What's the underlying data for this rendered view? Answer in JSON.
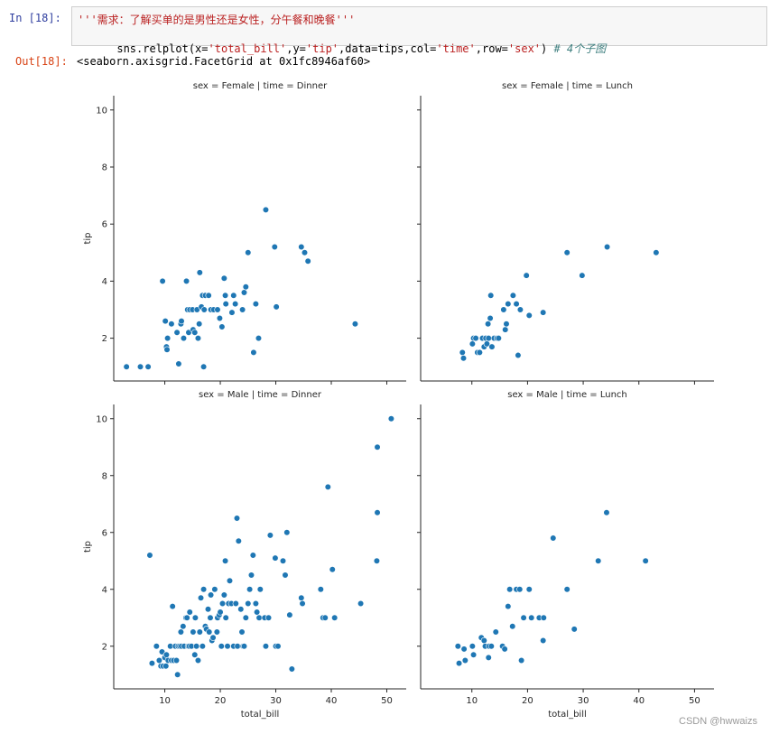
{
  "notebook": {
    "in_prompt": "In  [18]:",
    "out_prompt": "Out[18]:",
    "code_line1": "'''需求：了解买单的是男性还是女性，分午餐和晚餐'''",
    "code_line2_parts": [
      "sns.relplot(x=",
      "'total_bill'",
      ",y=",
      "'tip'",
      ",data=tips,col=",
      "'time'",
      ",row=",
      "'sex'",
      ") ",
      "# 4个子图"
    ],
    "output": "<seaborn.axisgrid.FacetGrid at 0x1fc8946af60>"
  },
  "watermark": "CSDN @hwwaizs",
  "chart_data": {
    "type": "scatter",
    "xlabel": "total_bill",
    "ylabel": "tip",
    "xlim": [
      0.8,
      53.5
    ],
    "ylim": [
      0.5,
      10.5
    ],
    "xticks": [
      10,
      20,
      30,
      40,
      50
    ],
    "yticks": [
      2,
      4,
      6,
      8,
      10
    ],
    "point_color": "#1f77b4",
    "facets": [
      {
        "title": "sex = Female | time = Dinner",
        "points": [
          [
            3.1,
            1.0
          ],
          [
            5.6,
            1.0
          ],
          [
            7.0,
            1.0
          ],
          [
            9.6,
            4.0
          ],
          [
            10.1,
            2.6
          ],
          [
            10.3,
            1.7
          ],
          [
            10.4,
            1.6
          ],
          [
            10.5,
            2.0
          ],
          [
            11.2,
            2.5
          ],
          [
            12.2,
            2.2
          ],
          [
            12.5,
            1.1
          ],
          [
            12.9,
            2.5
          ],
          [
            13.0,
            2.6
          ],
          [
            13.4,
            2.0
          ],
          [
            13.9,
            4.0
          ],
          [
            14.1,
            3.0
          ],
          [
            14.3,
            2.2
          ],
          [
            14.5,
            3.0
          ],
          [
            15.0,
            3.0
          ],
          [
            15.1,
            2.3
          ],
          [
            15.4,
            2.2
          ],
          [
            15.8,
            3.0
          ],
          [
            16.0,
            2.0
          ],
          [
            16.2,
            2.5
          ],
          [
            16.3,
            4.3
          ],
          [
            16.6,
            3.1
          ],
          [
            16.8,
            3.5
          ],
          [
            17.0,
            1.0
          ],
          [
            17.1,
            3.0
          ],
          [
            17.3,
            3.5
          ],
          [
            17.9,
            3.5
          ],
          [
            18.3,
            3.0
          ],
          [
            18.8,
            3.0
          ],
          [
            19.5,
            3.0
          ],
          [
            19.9,
            2.7
          ],
          [
            20.3,
            2.4
          ],
          [
            20.7,
            4.1
          ],
          [
            20.9,
            3.5
          ],
          [
            21.0,
            3.2
          ],
          [
            22.1,
            2.9
          ],
          [
            22.4,
            3.5
          ],
          [
            22.7,
            3.2
          ],
          [
            24.0,
            3.0
          ],
          [
            24.3,
            3.6
          ],
          [
            24.6,
            3.8
          ],
          [
            25.0,
            5.0
          ],
          [
            26.0,
            1.5
          ],
          [
            26.4,
            3.2
          ],
          [
            26.9,
            2.0
          ],
          [
            28.2,
            6.5
          ],
          [
            29.8,
            5.2
          ],
          [
            30.1,
            3.1
          ],
          [
            34.6,
            5.2
          ],
          [
            35.2,
            5.0
          ],
          [
            35.8,
            4.7
          ],
          [
            44.3,
            2.5
          ]
        ]
      },
      {
        "title": "sex = Female | time = Lunch",
        "points": [
          [
            8.3,
            1.5
          ],
          [
            8.5,
            1.3
          ],
          [
            10.1,
            1.8
          ],
          [
            10.3,
            2.0
          ],
          [
            10.7,
            2.0
          ],
          [
            11.0,
            1.5
          ],
          [
            11.4,
            1.5
          ],
          [
            11.9,
            2.0
          ],
          [
            12.2,
            1.7
          ],
          [
            12.5,
            2.0
          ],
          [
            12.7,
            1.8
          ],
          [
            12.9,
            2.5
          ],
          [
            13.0,
            2.0
          ],
          [
            13.3,
            2.7
          ],
          [
            13.4,
            3.5
          ],
          [
            13.6,
            1.7
          ],
          [
            14.0,
            2.0
          ],
          [
            14.5,
            2.0
          ],
          [
            14.8,
            2.0
          ],
          [
            15.7,
            3.0
          ],
          [
            16.0,
            2.3
          ],
          [
            16.2,
            2.5
          ],
          [
            16.5,
            3.2
          ],
          [
            17.4,
            3.5
          ],
          [
            18.0,
            3.2
          ],
          [
            18.3,
            1.4
          ],
          [
            18.7,
            3.0
          ],
          [
            19.8,
            4.2
          ],
          [
            20.3,
            2.8
          ],
          [
            22.8,
            2.9
          ],
          [
            27.1,
            5.0
          ],
          [
            29.8,
            4.2
          ],
          [
            34.3,
            5.2
          ],
          [
            43.1,
            5.0
          ]
        ]
      },
      {
        "title": "sex = Male | time = Dinner",
        "points": [
          [
            7.3,
            5.2
          ],
          [
            7.7,
            1.4
          ],
          [
            8.5,
            2.0
          ],
          [
            9.0,
            1.5
          ],
          [
            9.3,
            1.3
          ],
          [
            9.5,
            1.8
          ],
          [
            9.7,
            1.3
          ],
          [
            10.0,
            1.6
          ],
          [
            10.2,
            1.3
          ],
          [
            10.3,
            1.7
          ],
          [
            10.6,
            1.5
          ],
          [
            11.0,
            2.0
          ],
          [
            11.2,
            1.5
          ],
          [
            11.4,
            3.4
          ],
          [
            11.6,
            1.5
          ],
          [
            11.9,
            2.0
          ],
          [
            12.1,
            1.5
          ],
          [
            12.3,
            1.0
          ],
          [
            12.4,
            2.0
          ],
          [
            12.7,
            2.0
          ],
          [
            12.9,
            2.5
          ],
          [
            13.0,
            2.0
          ],
          [
            13.3,
            2.7
          ],
          [
            13.5,
            2.0
          ],
          [
            13.8,
            3.0
          ],
          [
            14.0,
            3.0
          ],
          [
            14.2,
            2.0
          ],
          [
            14.4,
            2.0
          ],
          [
            14.5,
            3.2
          ],
          [
            14.8,
            2.0
          ],
          [
            15.1,
            2.5
          ],
          [
            15.4,
            1.7
          ],
          [
            15.5,
            3.0
          ],
          [
            15.7,
            2.0
          ],
          [
            16.0,
            1.5
          ],
          [
            16.3,
            2.5
          ],
          [
            16.5,
            3.7
          ],
          [
            16.8,
            2.0
          ],
          [
            17.0,
            4.0
          ],
          [
            17.3,
            2.7
          ],
          [
            17.5,
            2.6
          ],
          [
            17.8,
            3.3
          ],
          [
            18.0,
            2.5
          ],
          [
            18.2,
            3.0
          ],
          [
            18.3,
            3.8
          ],
          [
            18.5,
            2.2
          ],
          [
            18.7,
            2.3
          ],
          [
            19.0,
            4.0
          ],
          [
            19.4,
            2.5
          ],
          [
            19.5,
            3.0
          ],
          [
            19.8,
            3.1
          ],
          [
            20.0,
            3.2
          ],
          [
            20.2,
            2.0
          ],
          [
            20.4,
            3.5
          ],
          [
            20.7,
            3.8
          ],
          [
            20.9,
            5.0
          ],
          [
            21.0,
            3.0
          ],
          [
            21.3,
            2.0
          ],
          [
            21.5,
            3.5
          ],
          [
            21.7,
            4.3
          ],
          [
            22.0,
            3.5
          ],
          [
            22.4,
            2.0
          ],
          [
            22.8,
            3.5
          ],
          [
            23.0,
            6.5
          ],
          [
            23.1,
            2.0
          ],
          [
            23.3,
            5.7
          ],
          [
            23.7,
            3.3
          ],
          [
            23.9,
            2.5
          ],
          [
            24.1,
            2.0
          ],
          [
            24.3,
            2.0
          ],
          [
            24.6,
            3.0
          ],
          [
            25.0,
            3.5
          ],
          [
            25.3,
            4.0
          ],
          [
            25.6,
            4.5
          ],
          [
            25.9,
            5.2
          ],
          [
            26.4,
            3.5
          ],
          [
            26.6,
            3.2
          ],
          [
            27.0,
            3.0
          ],
          [
            27.2,
            4.0
          ],
          [
            28.0,
            3.0
          ],
          [
            28.2,
            2.0
          ],
          [
            28.7,
            3.0
          ],
          [
            29.0,
            5.9
          ],
          [
            29.9,
            5.1
          ],
          [
            30.0,
            2.0
          ],
          [
            30.4,
            2.0
          ],
          [
            31.3,
            5.0
          ],
          [
            31.7,
            4.5
          ],
          [
            32.0,
            6.0
          ],
          [
            32.5,
            3.1
          ],
          [
            32.9,
            1.2
          ],
          [
            34.6,
            3.7
          ],
          [
            34.8,
            3.5
          ],
          [
            38.1,
            4.0
          ],
          [
            38.5,
            3.0
          ],
          [
            38.9,
            3.0
          ],
          [
            39.4,
            7.6
          ],
          [
            40.2,
            4.7
          ],
          [
            40.6,
            3.0
          ],
          [
            45.3,
            3.5
          ],
          [
            48.2,
            5.0
          ],
          [
            48.3,
            6.7
          ],
          [
            48.3,
            9.0
          ],
          [
            50.8,
            10.0
          ]
        ]
      },
      {
        "title": "sex = Male | time = Lunch",
        "points": [
          [
            7.5,
            2.0
          ],
          [
            7.7,
            1.4
          ],
          [
            8.6,
            1.9
          ],
          [
            8.8,
            1.5
          ],
          [
            10.1,
            2.0
          ],
          [
            10.3,
            1.7
          ],
          [
            11.7,
            2.3
          ],
          [
            12.2,
            2.2
          ],
          [
            12.4,
            2.0
          ],
          [
            13.0,
            1.6
          ],
          [
            13.1,
            2.0
          ],
          [
            13.5,
            2.0
          ],
          [
            14.3,
            2.5
          ],
          [
            15.5,
            2.0
          ],
          [
            15.9,
            1.9
          ],
          [
            16.5,
            3.4
          ],
          [
            16.8,
            4.0
          ],
          [
            17.3,
            2.7
          ],
          [
            18.0,
            4.0
          ],
          [
            18.6,
            4.0
          ],
          [
            18.9,
            1.5
          ],
          [
            19.3,
            3.0
          ],
          [
            20.3,
            4.0
          ],
          [
            20.7,
            3.0
          ],
          [
            22.1,
            3.0
          ],
          [
            22.8,
            2.2
          ],
          [
            22.9,
            3.0
          ],
          [
            24.6,
            5.8
          ],
          [
            27.1,
            4.0
          ],
          [
            28.4,
            2.6
          ],
          [
            32.7,
            5.0
          ],
          [
            34.2,
            6.7
          ],
          [
            41.2,
            5.0
          ]
        ]
      }
    ]
  }
}
